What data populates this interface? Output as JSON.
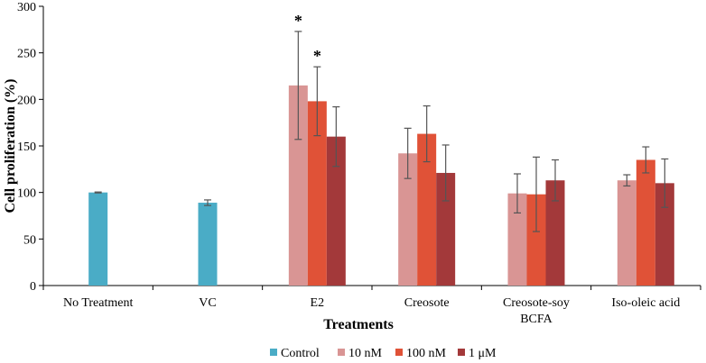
{
  "chart_data": {
    "type": "bar",
    "title": "",
    "xlabel": "Treatments",
    "ylabel": "Cell proliferation (%)",
    "ylim": [
      0,
      300
    ],
    "yticks": [
      "0",
      "50",
      "100",
      "150",
      "200",
      "250",
      "300"
    ],
    "categories": [
      {
        "lines": [
          "No Treatment"
        ]
      },
      {
        "lines": [
          "VC"
        ]
      },
      {
        "lines": [
          "E2"
        ]
      },
      {
        "lines": [
          "Creosote"
        ]
      },
      {
        "lines": [
          "Creosote-soy",
          "BCFA"
        ]
      },
      {
        "lines": [
          "Iso-oleic acid"
        ]
      }
    ],
    "series": [
      {
        "name": "Control",
        "color": "#4aacc6",
        "values": [
          100,
          89,
          null,
          null,
          null,
          null
        ],
        "errors": [
          0.5,
          3,
          null,
          null,
          null,
          null
        ]
      },
      {
        "name": "10 nM",
        "color": "#d99594",
        "values": [
          null,
          null,
          215,
          142,
          99,
          113
        ],
        "errors": [
          null,
          null,
          58,
          27,
          21,
          6
        ]
      },
      {
        "name": "100 nM",
        "color": "#e05237",
        "values": [
          null,
          null,
          198,
          163,
          98,
          135
        ],
        "errors": [
          null,
          null,
          37,
          30,
          40,
          14
        ]
      },
      {
        "name": "1 μM",
        "color": "#a3393a",
        "values": [
          null,
          null,
          160,
          121,
          113,
          110
        ],
        "errors": [
          null,
          null,
          32,
          30,
          22,
          26
        ]
      }
    ],
    "annotations": [
      {
        "category": 2,
        "series": 1,
        "text": "*"
      },
      {
        "category": 2,
        "series": 2,
        "text": "*"
      }
    ],
    "legend_position": "bottom"
  }
}
